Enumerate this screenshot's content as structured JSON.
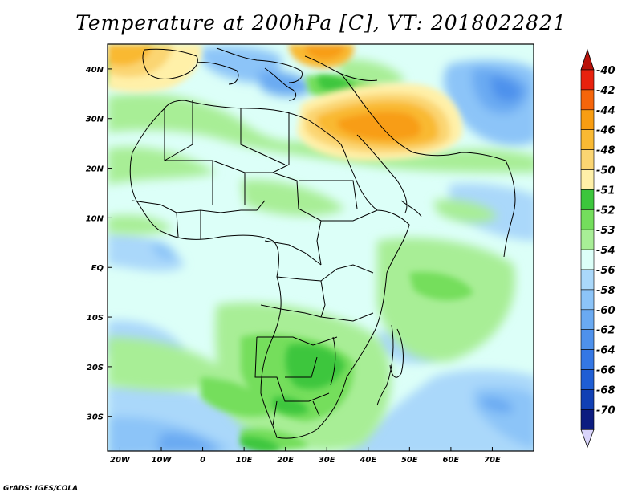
{
  "title": "Temperature at 200hPa [C], VT: 2018022821",
  "credit": "GrADS: IGES/COLA",
  "map": {
    "lon_range": [
      -23,
      80
    ],
    "lat_range": [
      -37,
      45
    ],
    "lon_ticks": [
      {
        "value": -20,
        "label": "20W"
      },
      {
        "value": -10,
        "label": "10W"
      },
      {
        "value": 0,
        "label": "0"
      },
      {
        "value": 10,
        "label": "10E"
      },
      {
        "value": 20,
        "label": "20E"
      },
      {
        "value": 30,
        "label": "30E"
      },
      {
        "value": 40,
        "label": "40E"
      },
      {
        "value": 50,
        "label": "50E"
      },
      {
        "value": 60,
        "label": "60E"
      },
      {
        "value": 70,
        "label": "70E"
      }
    ],
    "lat_ticks": [
      {
        "value": 40,
        "label": "40N"
      },
      {
        "value": 30,
        "label": "30N"
      },
      {
        "value": 20,
        "label": "20N"
      },
      {
        "value": 10,
        "label": "10N"
      },
      {
        "value": 0,
        "label": "EQ"
      },
      {
        "value": -10,
        "label": "10S"
      },
      {
        "value": -20,
        "label": "20S"
      },
      {
        "value": -30,
        "label": "30S"
      }
    ],
    "background_color": "#dcfff8"
  },
  "colorbar": {
    "levels": [
      {
        "label": "-40",
        "color": "#e8220e"
      },
      {
        "label": "-42",
        "color": "#f5650b"
      },
      {
        "label": "-44",
        "color": "#f89d12"
      },
      {
        "label": "-46",
        "color": "#f9b933"
      },
      {
        "label": "-48",
        "color": "#fbd572"
      },
      {
        "label": "-50",
        "color": "#fff0a8"
      },
      {
        "label": "-51",
        "color": "#3cc63c"
      },
      {
        "label": "-52",
        "color": "#74de5c"
      },
      {
        "label": "-53",
        "color": "#a8ee96"
      },
      {
        "label": "-54",
        "color": "#dcfff8"
      },
      {
        "label": "-56",
        "color": "#aad8fa"
      },
      {
        "label": "-58",
        "color": "#8cc4f8"
      },
      {
        "label": "-60",
        "color": "#6aaaf2"
      },
      {
        "label": "-62",
        "color": "#4e91ec"
      },
      {
        "label": "-64",
        "color": "#3477e4"
      },
      {
        "label": "-66",
        "color": "#1f5ed4"
      },
      {
        "label": "-68",
        "color": "#1140b4"
      },
      {
        "label": "-70",
        "color": "#0c1c80"
      }
    ],
    "top_arrow_color": "#b8120a",
    "bottom_arrow_color": "#d9d4fb"
  }
}
